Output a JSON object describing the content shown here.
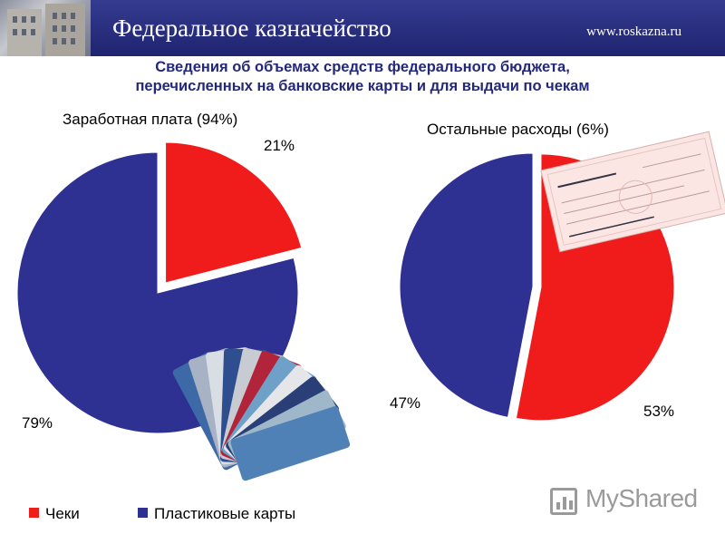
{
  "header": {
    "title": "Федеральное казначейство",
    "url": "www.roskazna.ru"
  },
  "subtitle": {
    "line1": "Сведения об объемах средств федерального бюджета,",
    "line2": "перечисленных на банковские карты и для выдачи по чекам"
  },
  "chart_data": [
    {
      "type": "pie",
      "title": "Заработная плата (94%)",
      "labels": [
        "Чеки",
        "Пластиковые карты"
      ],
      "values": [
        21,
        79
      ],
      "value_labels": [
        "21%",
        "79%"
      ],
      "colors": [
        "#f01b1b",
        "#2e3192"
      ],
      "exploded": "Чеки"
    },
    {
      "type": "pie",
      "title": "Остальные расходы (6%)",
      "labels": [
        "Чеки",
        "Пластиковые карты"
      ],
      "values": [
        53,
        47
      ],
      "value_labels": [
        "53%",
        "47%"
      ],
      "colors": [
        "#f01b1b",
        "#2e3192"
      ],
      "exploded": "Чеки"
    }
  ],
  "legend": {
    "items": [
      {
        "label": "Чеки",
        "color": "#f01b1b"
      },
      {
        "label": "Пластиковые карты",
        "color": "#2e3192"
      }
    ],
    "placement": "bottom-left"
  },
  "images": {
    "cards_icon": "plastic-cards-fan",
    "cheque_icon": "cheque-image"
  },
  "watermark": {
    "text": "MyShared"
  }
}
